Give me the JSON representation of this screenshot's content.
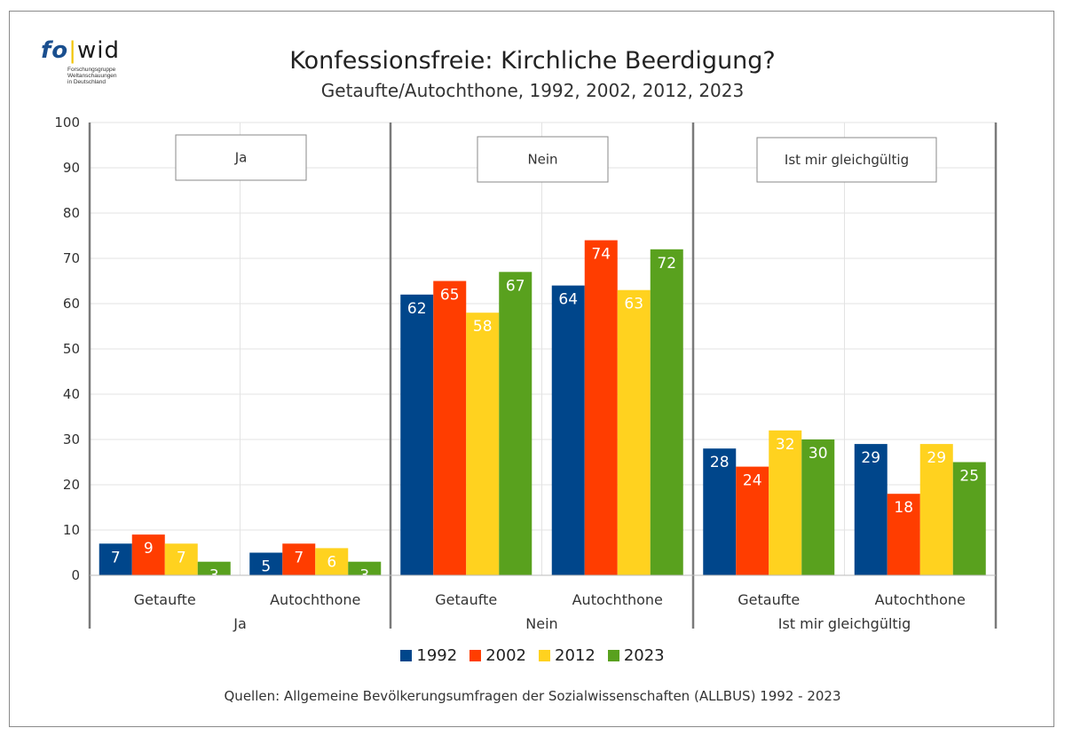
{
  "logo": {
    "fo": "fo",
    "separator": "|",
    "wid": "wid",
    "line1": "Forschungsgruppe",
    "line2": "Weltanschauungen",
    "line3": "in Deutschland"
  },
  "colors": {
    "1992": "#00468b",
    "2002": "#ff3d00",
    "2012": "#ffd21f",
    "2023": "#59a11e"
  },
  "source": "Quellen: Allgemeine Bevölkerungsumfragen der Sozialwissenschaften (ALLBUS) 1992 - 2023",
  "chart_data": {
    "type": "bar",
    "title": "Konfessionsfreie: Kirchliche Beerdigung?",
    "subtitle": "Getaufte/Autochthone, 1992, 2002, 2012, 2023",
    "ylim": [
      0,
      100
    ],
    "yticks": [
      0,
      10,
      20,
      30,
      40,
      50,
      60,
      70,
      80,
      90,
      100
    ],
    "grid": true,
    "legend_position": "bottom",
    "legend": [
      "1992",
      "2002",
      "2012",
      "2023"
    ],
    "panels": [
      {
        "label": "Ja",
        "groups": [
          {
            "name": "Getaufte",
            "values": [
              7,
              9,
              7,
              3
            ]
          },
          {
            "name": "Autochthone",
            "values": [
              5,
              7,
              6,
              3
            ]
          }
        ]
      },
      {
        "label": "Nein",
        "groups": [
          {
            "name": "Getaufte",
            "values": [
              62,
              65,
              58,
              67
            ]
          },
          {
            "name": "Autochthone",
            "values": [
              64,
              74,
              63,
              72
            ]
          }
        ]
      },
      {
        "label": "Ist mir gleichgültig",
        "groups": [
          {
            "name": "Getaufte",
            "values": [
              28,
              24,
              32,
              30
            ]
          },
          {
            "name": "Autochthone",
            "values": [
              29,
              18,
              29,
              25
            ]
          }
        ]
      }
    ]
  }
}
